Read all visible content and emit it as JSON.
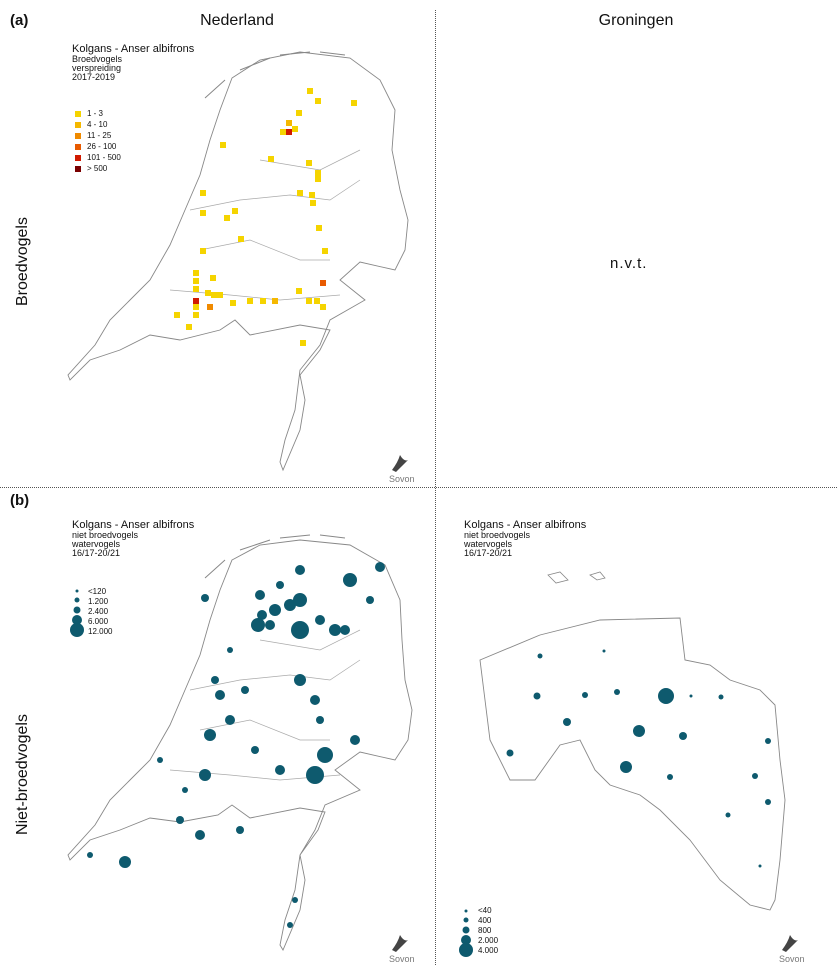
{
  "panels": {
    "a_label": "(a)",
    "b_label": "(b)"
  },
  "columns": [
    "Nederland",
    "Groningen"
  ],
  "rows": [
    "Broedvogels",
    "Niet-broedvogels"
  ],
  "na_text": "n.v.t.",
  "map_a": {
    "title": "Kolgans - Anser albifrons",
    "subtitle": [
      "Broedvogels",
      "verspreiding",
      "2017-2019"
    ],
    "legend": [
      {
        "label": "1 - 3",
        "color": "#f5d400"
      },
      {
        "label": "4 - 10",
        "color": "#f5b800"
      },
      {
        "label": "11 - 25",
        "color": "#f08a00"
      },
      {
        "label": "26 - 100",
        "color": "#e85a00"
      },
      {
        "label": "101 - 500",
        "color": "#d01a00"
      },
      {
        "label": "> 500",
        "color": "#7a0000"
      }
    ]
  },
  "map_b_nl": {
    "title": "Kolgans - Anser albifrons",
    "subtitle": [
      "niet broedvogels",
      "watervogels",
      "16/17-20/21"
    ],
    "legend": [
      "<120",
      "1.200",
      "2.400",
      "6.000",
      "12.000"
    ]
  },
  "map_b_gr": {
    "title": "Kolgans - Anser albifrons",
    "subtitle": [
      "niet broedvogels",
      "watervogels",
      "16/17-20/21"
    ],
    "legend": [
      "<40",
      "400",
      "800",
      "2.000",
      "4.000"
    ]
  },
  "logo": "Sovon",
  "colors": {
    "dot": "#0e5a6e",
    "outline": "#999999"
  }
}
